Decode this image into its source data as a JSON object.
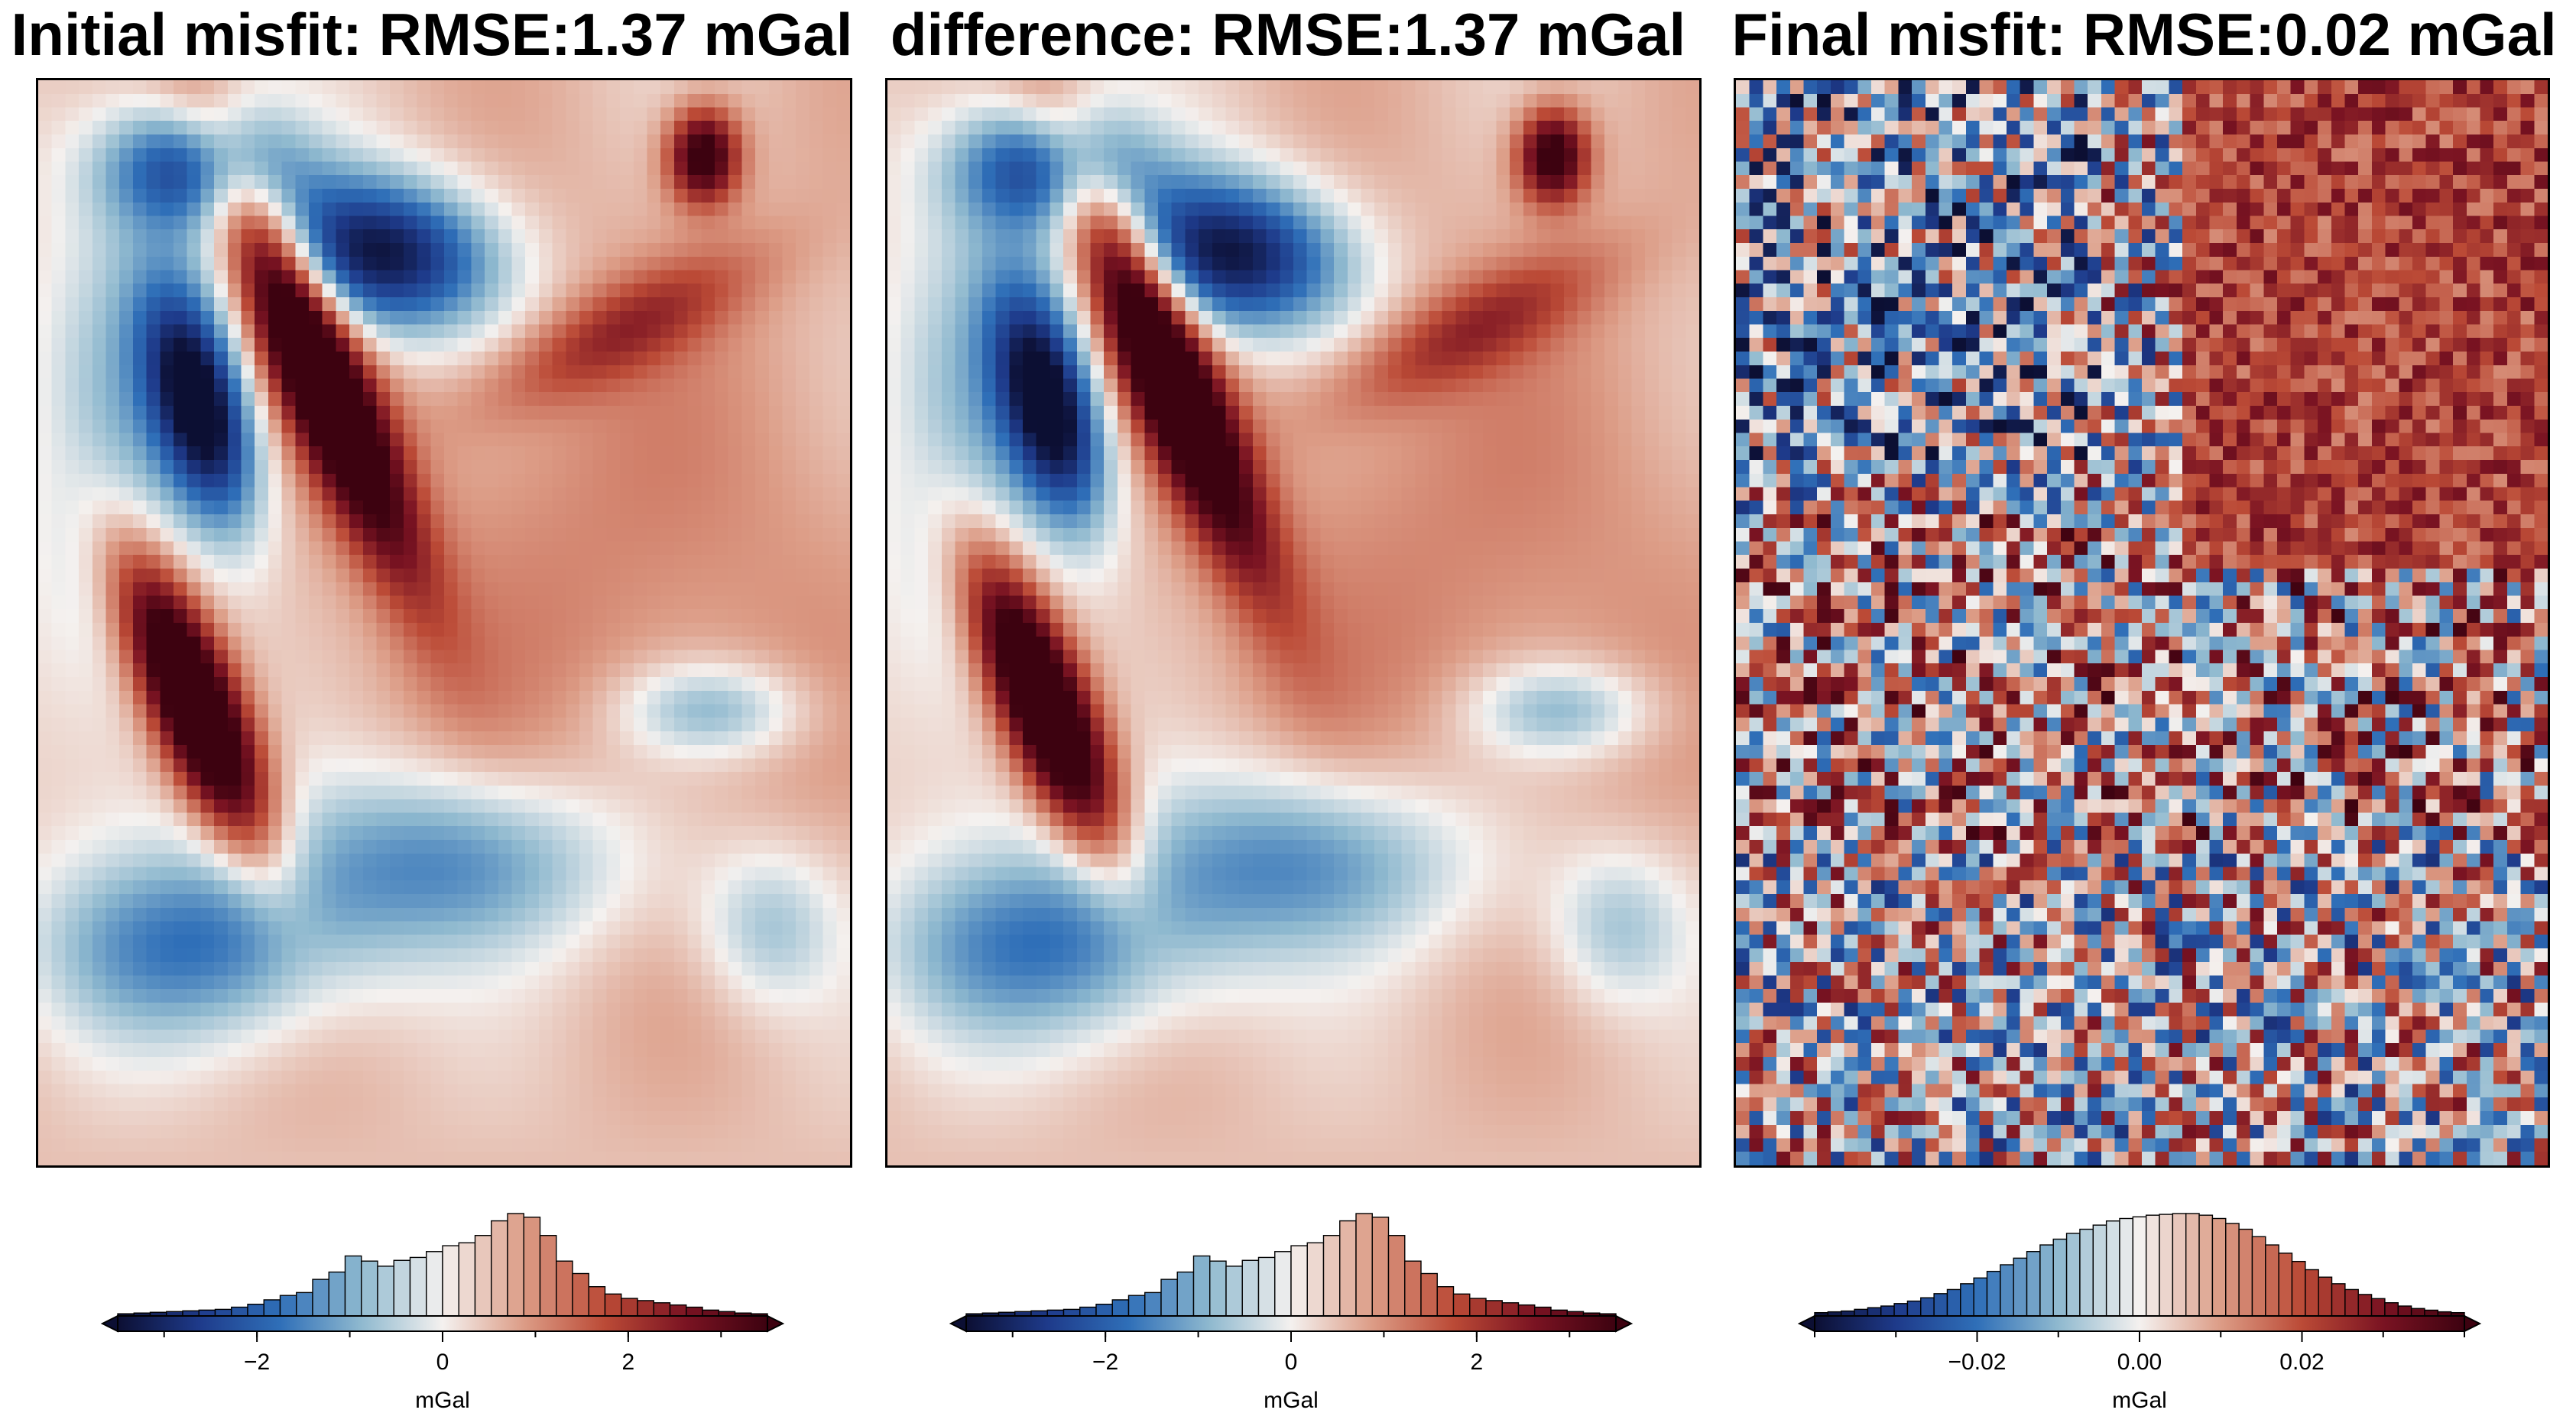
{
  "colors": {
    "colormap": [
      "#0c0f33",
      "#1e3a8a",
      "#2f6fb8",
      "#8fb9cf",
      "#f4f1ef",
      "#dc9c86",
      "#bb4a36",
      "#7a1322",
      "#3d0210"
    ],
    "frame": "#000000",
    "bar_edge": "#000000",
    "background": "#ffffff"
  },
  "chart_data": [
    {
      "type": "heatmap",
      "title": "Initial misfit: RMSE:1.37 mGal",
      "colorbar": {
        "label": "mGal",
        "range": [
          -3.5,
          3.5
        ],
        "ticks": [
          -2,
          0,
          2
        ],
        "tick_labels": [
          "−2",
          "0",
          "2"
        ],
        "histogram_bins": [
          0.3,
          0.4,
          0.5,
          0.6,
          0.7,
          0.8,
          0.9,
          1.2,
          1.6,
          2.2,
          2.8,
          3.2,
          5,
          6,
          8.2,
          7.5,
          6.8,
          7.6,
          8,
          8.8,
          9.6,
          10,
          11,
          13,
          14,
          13.5,
          11,
          7.5,
          5.8,
          4,
          3,
          2.4,
          2.1,
          1.8,
          1.5,
          1.2,
          0.8,
          0.6,
          0.4,
          0.3
        ]
      }
    },
    {
      "type": "heatmap",
      "title": "difference: RMSE:1.37 mGal",
      "colorbar": {
        "label": "mGal",
        "range": [
          -3.5,
          3.5
        ],
        "ticks": [
          -2,
          0,
          2
        ],
        "tick_labels": [
          "−2",
          "0",
          "2"
        ],
        "histogram_bins": [
          0.3,
          0.4,
          0.5,
          0.6,
          0.7,
          0.8,
          0.9,
          1.2,
          1.6,
          2.2,
          2.8,
          3.2,
          5,
          6,
          8.2,
          7.5,
          6.8,
          7.6,
          8,
          8.8,
          9.6,
          10,
          11,
          13,
          14,
          13.5,
          11,
          7.5,
          5.8,
          4,
          3,
          2.4,
          2.1,
          1.8,
          1.5,
          1.2,
          0.8,
          0.6,
          0.4,
          0.3
        ]
      }
    },
    {
      "type": "heatmap",
      "title": "Final misfit: RMSE:0.02 mGal",
      "colorbar": {
        "label": "mGal",
        "range": [
          -0.04,
          0.04
        ],
        "ticks": [
          -0.02,
          0.0,
          0.02
        ],
        "tick_labels": [
          "−0.02",
          "0.00",
          "0.02"
        ],
        "histogram_bins": [
          0.4,
          0.5,
          0.6,
          0.8,
          1,
          1.2,
          1.5,
          1.8,
          2.2,
          2.7,
          3.2,
          3.9,
          4.6,
          5.4,
          6.2,
          7,
          7.8,
          8.6,
          9.3,
          10,
          10.5,
          11,
          11.5,
          11.8,
          12,
          12.2,
          12.3,
          12.4,
          12.4,
          12.2,
          11.8,
          11.2,
          10.5,
          9.6,
          8.6,
          7.6,
          6.6,
          5.6,
          4.7,
          3.9,
          3.2,
          2.6,
          2.1,
          1.6,
          1.2,
          0.9,
          0.7,
          0.5,
          0.4
        ]
      }
    }
  ]
}
